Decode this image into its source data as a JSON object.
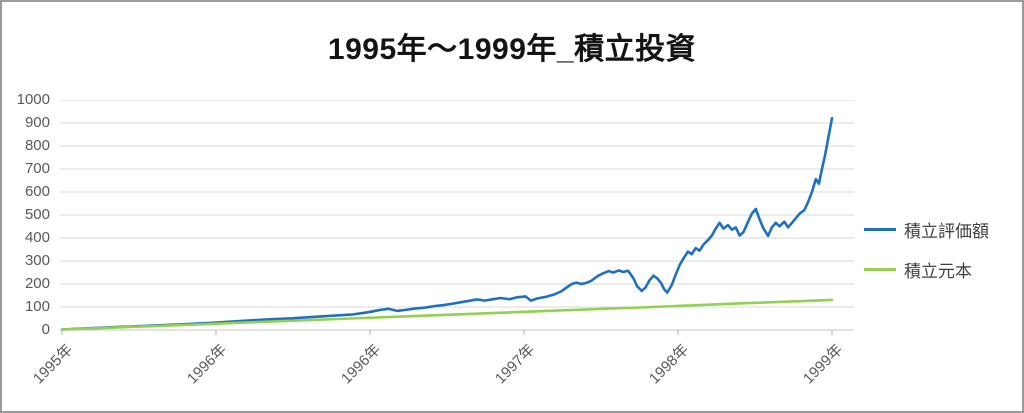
{
  "title": "1995年〜1999年_積立投資",
  "colors": {
    "evaluation_line": "#1f70c1",
    "principal_line": "#92d050",
    "grid": "#d9d9d9",
    "axis": "#c6c6c6",
    "tick": "#b0b0b0",
    "tick_label_text": "#595959",
    "legend_text": "#404040",
    "title_text": "#141414",
    "frame": "#9a9a9a"
  },
  "legend": {
    "position": "right",
    "items": [
      {
        "label": "積立評価額",
        "series_index": 0
      },
      {
        "label": "積立元本",
        "series_index": 1
      }
    ]
  },
  "chart_data": {
    "type": "line",
    "title": "1995年〜1999年_積立投資",
    "xlabel": "",
    "ylabel": "",
    "ylim": [
      0,
      1000
    ],
    "y_ticks": [
      0,
      100,
      200,
      300,
      400,
      500,
      600,
      700,
      800,
      900,
      1000
    ],
    "x_tick_labels": [
      "1995年",
      "1996年",
      "1996年",
      "1997年",
      "1998年",
      "1999年"
    ],
    "grid": "horizontal",
    "legend_position": "right",
    "series": [
      {
        "name": "積立評価額",
        "color": "#1f70c1",
        "width": 2.6,
        "points": [
          [
            0.0,
            2
          ],
          [
            0.026,
            6
          ],
          [
            0.052,
            10
          ],
          [
            0.078,
            14
          ],
          [
            0.104,
            17
          ],
          [
            0.13,
            21
          ],
          [
            0.156,
            25
          ],
          [
            0.182,
            29
          ],
          [
            0.203,
            33
          ],
          [
            0.221,
            37
          ],
          [
            0.247,
            42
          ],
          [
            0.273,
            47
          ],
          [
            0.299,
            51
          ],
          [
            0.326,
            57
          ],
          [
            0.352,
            62
          ],
          [
            0.378,
            68
          ],
          [
            0.397,
            77
          ],
          [
            0.414,
            88
          ],
          [
            0.424,
            92
          ],
          [
            0.435,
            83
          ],
          [
            0.445,
            87
          ],
          [
            0.458,
            93
          ],
          [
            0.471,
            97
          ],
          [
            0.484,
            104
          ],
          [
            0.497,
            109
          ],
          [
            0.508,
            115
          ],
          [
            0.518,
            121
          ],
          [
            0.529,
            127
          ],
          [
            0.539,
            133
          ],
          [
            0.549,
            128
          ],
          [
            0.56,
            134
          ],
          [
            0.57,
            139
          ],
          [
            0.581,
            134
          ],
          [
            0.591,
            142
          ],
          [
            0.602,
            146
          ],
          [
            0.609,
            128
          ],
          [
            0.617,
            137
          ],
          [
            0.628,
            144
          ],
          [
            0.638,
            153
          ],
          [
            0.648,
            168
          ],
          [
            0.656,
            186
          ],
          [
            0.662,
            200
          ],
          [
            0.668,
            206
          ],
          [
            0.674,
            200
          ],
          [
            0.68,
            204
          ],
          [
            0.687,
            213
          ],
          [
            0.695,
            233
          ],
          [
            0.703,
            247
          ],
          [
            0.71,
            256
          ],
          [
            0.716,
            250
          ],
          [
            0.723,
            259
          ],
          [
            0.729,
            252
          ],
          [
            0.735,
            258
          ],
          [
            0.742,
            226
          ],
          [
            0.747,
            190
          ],
          [
            0.753,
            170
          ],
          [
            0.758,
            186
          ],
          [
            0.763,
            216
          ],
          [
            0.768,
            236
          ],
          [
            0.773,
            225
          ],
          [
            0.778,
            204
          ],
          [
            0.782,
            178
          ],
          [
            0.786,
            162
          ],
          [
            0.792,
            196
          ],
          [
            0.797,
            241
          ],
          [
            0.802,
            281
          ],
          [
            0.807,
            311
          ],
          [
            0.813,
            341
          ],
          [
            0.818,
            330
          ],
          [
            0.823,
            356
          ],
          [
            0.828,
            345
          ],
          [
            0.833,
            371
          ],
          [
            0.839,
            391
          ],
          [
            0.844,
            411
          ],
          [
            0.849,
            441
          ],
          [
            0.854,
            466
          ],
          [
            0.859,
            441
          ],
          [
            0.865,
            456
          ],
          [
            0.87,
            436
          ],
          [
            0.875,
            446
          ],
          [
            0.88,
            411
          ],
          [
            0.885,
            426
          ],
          [
            0.891,
            471
          ],
          [
            0.896,
            506
          ],
          [
            0.901,
            526
          ],
          [
            0.906,
            481
          ],
          [
            0.911,
            441
          ],
          [
            0.917,
            409
          ],
          [
            0.922,
            446
          ],
          [
            0.927,
            466
          ],
          [
            0.932,
            451
          ],
          [
            0.938,
            471
          ],
          [
            0.943,
            446
          ],
          [
            0.948,
            466
          ],
          [
            0.953,
            486
          ],
          [
            0.958,
            506
          ],
          [
            0.964,
            521
          ],
          [
            0.969,
            556
          ],
          [
            0.974,
            601
          ],
          [
            0.979,
            656
          ],
          [
            0.983,
            636
          ],
          [
            0.987,
            701
          ],
          [
            0.991,
            761
          ],
          [
            0.995,
            831
          ],
          [
            1.0,
            921
          ]
        ]
      },
      {
        "name": "積立元本",
        "color": "#92d050",
        "width": 2.6,
        "points": [
          [
            0.0,
            2
          ],
          [
            0.125,
            18
          ],
          [
            0.25,
            34
          ],
          [
            0.375,
            50
          ],
          [
            0.5,
            66
          ],
          [
            0.625,
            82
          ],
          [
            0.75,
            98
          ],
          [
            0.875,
            115
          ],
          [
            1.0,
            131
          ]
        ]
      }
    ]
  }
}
